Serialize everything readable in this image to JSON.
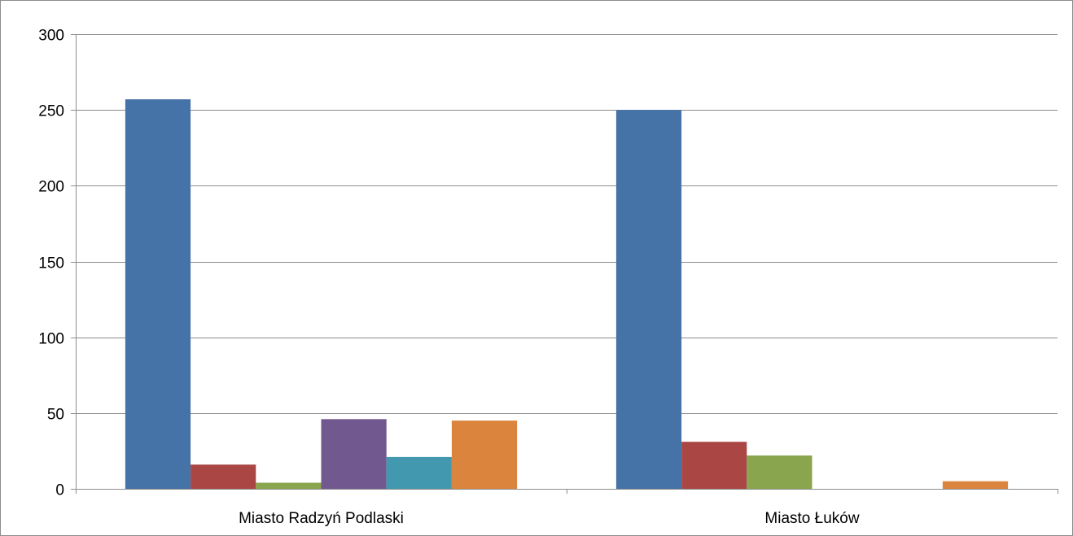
{
  "chart_data": {
    "type": "bar",
    "title": "",
    "xlabel": "",
    "ylabel": "",
    "categories": [
      "Miasto Radzyń Podlaski",
      "Miasto Łuków"
    ],
    "series": [
      {
        "color": "#4572a7",
        "values": [
          257,
          250
        ]
      },
      {
        "color": "#aa4643",
        "values": [
          16,
          31
        ]
      },
      {
        "color": "#89a54e",
        "values": [
          4,
          22
        ]
      },
      {
        "color": "#71588f",
        "values": [
          46,
          0
        ]
      },
      {
        "color": "#4198af",
        "values": [
          21,
          0
        ]
      },
      {
        "color": "#db843d",
        "values": [
          45,
          5
        ]
      }
    ],
    "ylim": [
      0,
      300
    ],
    "y_ticks": [
      0,
      50,
      100,
      150,
      200,
      250,
      300
    ],
    "y_tick_labels": [
      "0",
      "50",
      "100",
      "150",
      "200",
      "250",
      "300"
    ],
    "grid": true,
    "legend": "none"
  }
}
